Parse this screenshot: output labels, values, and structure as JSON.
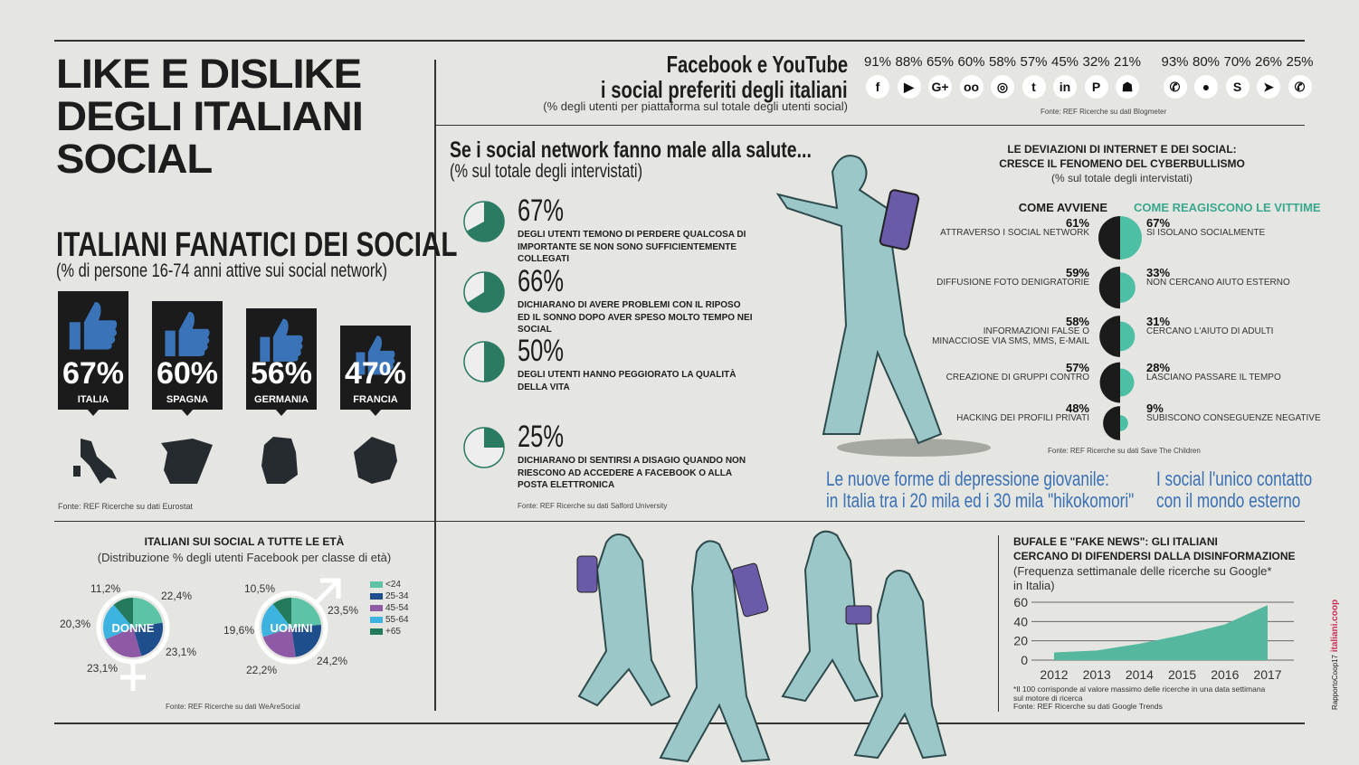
{
  "title": [
    "LIKE E DISLIKE",
    "DEGLI ITALIANI",
    "SOCIAL"
  ],
  "fanatici": {
    "title": "ITALIANI FANATICI DEI SOCIAL",
    "subtitle": "(% di persone 16-74 anni attive sui social network)",
    "source": "Fonte: REF Ricerche su dati Eurostat",
    "countries": [
      {
        "pct": "67%",
        "name": "ITALIA",
        "value": 67
      },
      {
        "pct": "60%",
        "name": "SPAGNA",
        "value": 60
      },
      {
        "pct": "56%",
        "name": "GERMANIA",
        "value": 56
      },
      {
        "pct": "47%",
        "name": "FRANCIA",
        "value": 47
      }
    ]
  },
  "social": {
    "title1": "Facebook e YouTube",
    "title2": "i social preferiti degli italiani",
    "subtitle": "(% degli utenti per piattaforma sul totale degli utenti social)",
    "source": "Fonte: REF Ricerche su dati Blogmeter",
    "items": [
      {
        "icon": "facebook-icon",
        "glyph": "f",
        "pct": "91%"
      },
      {
        "icon": "youtube-icon",
        "glyph": "▶",
        "pct": "88%"
      },
      {
        "icon": "google-plus-icon",
        "glyph": "G+",
        "pct": "65%"
      },
      {
        "icon": "tripadvisor-icon",
        "glyph": "oo",
        "pct": "60%"
      },
      {
        "icon": "instagram-icon",
        "glyph": "◎",
        "pct": "58%"
      },
      {
        "icon": "twitter-icon",
        "glyph": "t",
        "pct": "57%"
      },
      {
        "icon": "linkedin-icon",
        "glyph": "in",
        "pct": "45%"
      },
      {
        "icon": "pinterest-icon",
        "glyph": "P",
        "pct": "32%"
      },
      {
        "icon": "snapchat-icon",
        "glyph": "☗",
        "pct": "21%"
      },
      {
        "icon": "whatsapp-icon",
        "glyph": "✆",
        "pct": "93%"
      },
      {
        "icon": "messenger-icon",
        "glyph": "●",
        "pct": "80%"
      },
      {
        "icon": "skype-icon",
        "glyph": "S",
        "pct": "70%"
      },
      {
        "icon": "telegram-icon",
        "glyph": "➤",
        "pct": "26%"
      },
      {
        "icon": "viber-icon",
        "glyph": "✆",
        "pct": "25%"
      }
    ]
  },
  "salute": {
    "title": "Se i social network fanno male alla salute...",
    "subtitle": "(% sul totale degli intervistati)",
    "source": "Fonte: REF Ricerche su dati Salford University",
    "items": [
      {
        "value": 67,
        "pct": "67%",
        "text": "DEGLI UTENTI TEMONO DI PERDERE QUALCOSA DI IMPORTANTE SE NON SONO SUFFICIENTEMENTE COLLEGATI"
      },
      {
        "value": 66,
        "pct": "66%",
        "text": "DICHIARANO DI AVERE PROBLEMI CON IL RIPOSO ED IL SONNO DOPO AVER SPESO MOLTO TEMPO NEI SOCIAL"
      },
      {
        "value": 50,
        "pct": "50%",
        "text": "DEGLI UTENTI HANNO PEGGIORATO LA QUALITÀ DELLA VITA"
      },
      {
        "value": 25,
        "pct": "25%",
        "text": "DICHIARANO DI SENTIRSI A DISAGIO QUANDO NON RIESCONO AD ACCEDERE A FACEBOOK O ALLA POSTA ELETTRONICA"
      }
    ]
  },
  "cyber": {
    "title1": "LE DEVIAZIONI DI INTERNET E DEI SOCIAL:",
    "title2": "CRESCE IL FENOMENO DEL CYBERBULLISMO",
    "subtitle": "(% sul totale degli intervistati)",
    "col_left": "COME AVVIENE",
    "col_right": "COME REAGISCONO LE VITTIME",
    "source": "Fonte: REF Ricerche su dati Save The Children",
    "rows": [
      {
        "lv": 61,
        "lp": "61%",
        "lt": "ATTRAVERSO I SOCIAL NETWORK",
        "rv": 67,
        "rp": "67%",
        "rt": "SI ISOLANO SOCIALMENTE"
      },
      {
        "lv": 59,
        "lp": "59%",
        "lt": "DIFFUSIONE FOTO DENIGRATORIE",
        "rv": 33,
        "rp": "33%",
        "rt": "NON CERCANO AIUTO ESTERNO"
      },
      {
        "lv": 58,
        "lp": "58%",
        "lt": "INFORMAZIONI FALSE O MINACCIOSE VIA SMS, MMS, E-MAIL",
        "rv": 31,
        "rp": "31%",
        "rt": "CERCANO L'AIUTO DI ADULTI"
      },
      {
        "lv": 57,
        "lp": "57%",
        "lt": "CREAZIONE DI GRUPPI CONTRO",
        "rv": 28,
        "rp": "28%",
        "rt": "LASCIANO PASSARE IL TEMPO"
      },
      {
        "lv": 48,
        "lp": "48%",
        "lt": "HACKING DEI PROFILI PRIVATI",
        "rv": 9,
        "rp": "9%",
        "rt": "SUBISCONO CONSEGUENZE NEGATIVE"
      }
    ]
  },
  "depressione": {
    "line1": "Le nuove forme di depressione giovanile:",
    "line2": "in Italia tra i 20 mila ed i 30 mila \"hikokomori\"",
    "contatto1": "I social l'unico contatto",
    "contatto2": "con il mondo esterno"
  },
  "eta": {
    "title": "ITALIANI SUI SOCIAL A TUTTE LE ETÀ",
    "subtitle": "(Distribuzione % degli utenti Facebook per classe di età)",
    "source": "Fonte: REF Ricerche su dati WeAreSocial"
  },
  "colors": {
    "teal": "#4dbfa5",
    "dark_green": "#2a7a64",
    "chart_teal": "#55b79e",
    "blue_text": "#3a70b5",
    "thumb_blue": "#3a73b8"
  },
  "chart_data": [
    {
      "type": "pie",
      "name": "DONNE",
      "categories": [
        "<24",
        "25-34",
        "45-54",
        "55-64",
        "+65"
      ],
      "values": [
        22.4,
        23.1,
        23.1,
        20.3,
        11.2
      ],
      "labels": [
        "22,4%",
        "23,1%",
        "23,1%",
        "20,3%",
        "11,2%"
      ],
      "colors": [
        "#5cc3a6",
        "#1f4e8c",
        "#8e5aa6",
        "#3db4e0",
        "#237a5c"
      ]
    },
    {
      "type": "pie",
      "name": "UOMINI",
      "categories": [
        "<24",
        "25-34",
        "45-54",
        "55-64",
        "+65"
      ],
      "values": [
        23.5,
        24.2,
        22.2,
        19.6,
        10.5
      ],
      "labels": [
        "23,5%",
        "24,2%",
        "22,2%",
        "19,6%",
        "10,5%"
      ],
      "colors": [
        "#5cc3a6",
        "#1f4e8c",
        "#8e5aa6",
        "#3db4e0",
        "#237a5c"
      ],
      "legend_placement": "right"
    },
    {
      "type": "area",
      "title1": "BUFALE E \"FAKE NEWS\": GLI ITALIANI",
      "title2": "CERCANO DI DIFENDERSI DALLA DISINFORMAZIONE",
      "subtitle1": "(Frequenza settimanale delle ricerche su Google*",
      "subtitle2": "in Italia)",
      "x": [
        2012,
        2013,
        2014,
        2015,
        2016,
        2017
      ],
      "y": [
        8,
        10,
        17,
        26,
        37,
        57
      ],
      "ylim": [
        0,
        60
      ],
      "yticks": [
        "0",
        "20",
        "40",
        "60"
      ],
      "xticks": [
        "2012",
        "2013",
        "2014",
        "2015",
        "2016",
        "2017"
      ],
      "grid": true,
      "note1": "*Il 100 corrisponde al valore massimo delle ricerche in una data settimana",
      "note2": "sul motore di ricerca",
      "source": "Fonte: REF Ricerche su dati Google Trends"
    }
  ],
  "side_brand": {
    "report": "RapportoCoop17",
    "site": "italiani.coop"
  }
}
